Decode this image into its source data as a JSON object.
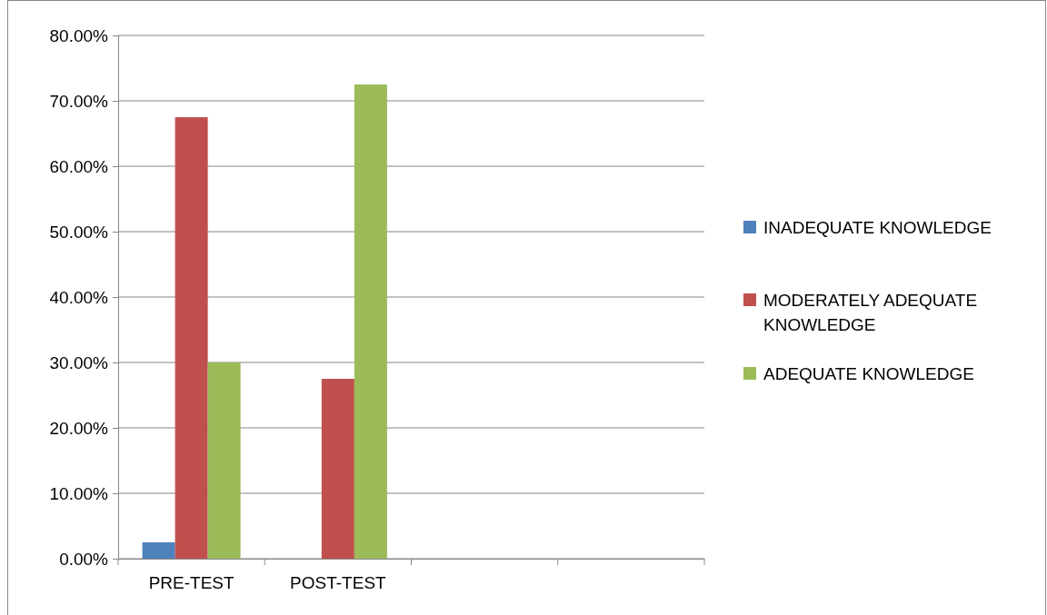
{
  "chart_data": {
    "type": "bar",
    "categories": [
      "PRE-TEST",
      "POST-TEST",
      null,
      null
    ],
    "series": [
      {
        "name": "INADEQUATE KNOWLEDGE",
        "color": "#4f81bd",
        "values": [
          2.5,
          0,
          null,
          null
        ]
      },
      {
        "name": "MODERATELY ADEQUATE KNOWLEDGE",
        "color": "#c0504d",
        "values": [
          67.5,
          27.5,
          null,
          null
        ]
      },
      {
        "name": "ADEQUATE KNOWLEDGE",
        "color": "#9bbb59",
        "values": [
          30,
          72.5,
          null,
          null
        ]
      }
    ],
    "ylim": [
      0,
      80
    ],
    "yticks": [
      {
        "value": 0,
        "label": "0.00%"
      },
      {
        "value": 10,
        "label": "10.00%"
      },
      {
        "value": 20,
        "label": "20.00%"
      },
      {
        "value": 30,
        "label": "30.00%"
      },
      {
        "value": 40,
        "label": "40.00%"
      },
      {
        "value": 50,
        "label": "50.00%"
      },
      {
        "value": 60,
        "label": "60.00%"
      },
      {
        "value": 70,
        "label": "70.00%"
      },
      {
        "value": 80,
        "label": "80.00%"
      }
    ],
    "grid": "y",
    "legend": "right"
  }
}
